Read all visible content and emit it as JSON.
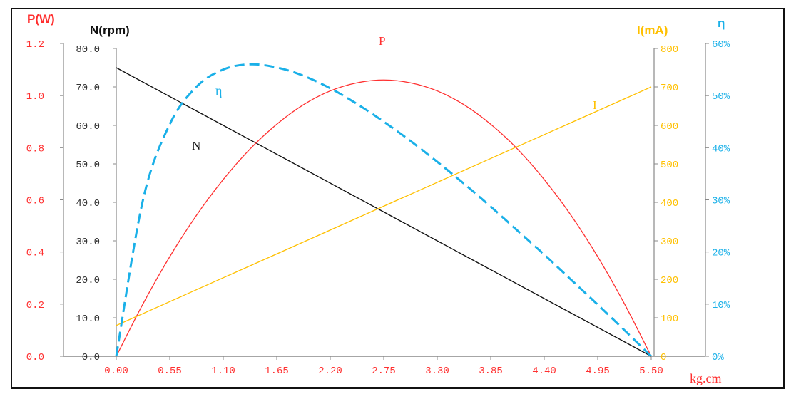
{
  "chart_data": {
    "type": "line",
    "xlabel": "kg.cm",
    "xlim": [
      0,
      5.5
    ],
    "x_ticks": [
      "0.00",
      "0.55",
      "1.10",
      "1.65",
      "2.20",
      "2.75",
      "3.30",
      "3.85",
      "4.40",
      "4.95",
      "5.50"
    ],
    "grid": false,
    "axes": {
      "P": {
        "title": "P(W)",
        "range": [
          0,
          1.2
        ],
        "ticks": [
          "0.0",
          "0.2",
          "0.4",
          "0.6",
          "0.8",
          "1.0",
          "1.2"
        ],
        "color": "#ff3030",
        "side": "left-outer"
      },
      "N": {
        "title": "N(rpm)",
        "range": [
          0,
          80
        ],
        "ticks": [
          "0.0",
          "10.0",
          "20.0",
          "30.0",
          "40.0",
          "50.0",
          "60.0",
          "70.0",
          "80.0"
        ],
        "color": "#111111",
        "side": "left-inner"
      },
      "I": {
        "title": "I(mA)",
        "range": [
          0,
          800
        ],
        "ticks": [
          "0",
          "100",
          "200",
          "300",
          "400",
          "500",
          "600",
          "700",
          "800"
        ],
        "color": "#ffc000",
        "side": "right-inner"
      },
      "eta": {
        "title": "η",
        "range": [
          0,
          60
        ],
        "ticks": [
          "0%",
          "10%",
          "20%",
          "30%",
          "40%",
          "50%",
          "60%"
        ],
        "color": "#1ab0e8",
        "side": "right-outer"
      }
    },
    "x": [
      0,
      0.275,
      0.55,
      0.825,
      1.1,
      1.375,
      1.65,
      1.925,
      2.2,
      2.475,
      2.75,
      3.025,
      3.3,
      3.575,
      3.85,
      4.125,
      4.4,
      4.675,
      4.95,
      5.225,
      5.5
    ],
    "series": [
      {
        "name": "N",
        "axis": "N",
        "color": "#111111",
        "dash": false,
        "values": [
          75,
          71.25,
          67.5,
          63.75,
          60,
          56.25,
          52.5,
          48.75,
          45,
          41.25,
          37.5,
          33.75,
          30,
          26.25,
          22.5,
          18.75,
          15,
          11.25,
          7.5,
          3.75,
          0
        ]
      },
      {
        "name": "P",
        "axis": "P",
        "color": "#ff3030",
        "dash": false,
        "values": [
          0,
          0.201,
          0.382,
          0.541,
          0.678,
          0.795,
          0.89,
          0.965,
          1.018,
          1.049,
          1.06,
          1.049,
          1.018,
          0.965,
          0.89,
          0.795,
          0.678,
          0.541,
          0.382,
          0.201,
          0
        ]
      },
      {
        "name": "I",
        "axis": "I",
        "color": "#ffc000",
        "dash": false,
        "values": [
          80,
          111,
          142,
          173,
          204,
          235,
          266,
          297,
          328,
          359,
          390,
          421,
          452,
          483,
          514,
          545,
          576,
          607,
          638,
          669,
          700
        ]
      },
      {
        "name": "η",
        "axis": "eta",
        "color": "#1ab0e8",
        "dash": true,
        "values": [
          0,
          30.0,
          44.5,
          51.7,
          55.0,
          56.0,
          55.4,
          53.8,
          51.4,
          48.4,
          45.0,
          41.3,
          37.3,
          33.1,
          28.7,
          24.1,
          19.5,
          14.7,
          9.9,
          5.0,
          0
        ]
      }
    ]
  }
}
